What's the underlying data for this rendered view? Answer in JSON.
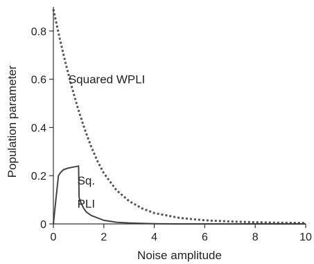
{
  "chart_data": {
    "type": "line",
    "title": "",
    "xlabel": "Noise amplitude",
    "ylabel": "Population parameter",
    "xlim": [
      0,
      10
    ],
    "ylim": [
      0,
      0.9
    ],
    "xticks": [
      0,
      2,
      4,
      6,
      8,
      10
    ],
    "xtick_labels": [
      "0",
      "2",
      "4",
      "6",
      "8",
      "10"
    ],
    "yticks": [
      0,
      0.2,
      0.4,
      0.6,
      0.8
    ],
    "ytick_labels": [
      "0",
      "0.2",
      "0.4",
      "0.6",
      "0.8"
    ],
    "grid": false,
    "series": [
      {
        "name": "Squared WPLI",
        "style": "dotted",
        "color": "#555555",
        "x": [
          0,
          0.25,
          0.5,
          0.75,
          1,
          1.25,
          1.5,
          1.75,
          2,
          2.5,
          3,
          3.5,
          4,
          5,
          6,
          7,
          8,
          9,
          10
        ],
        "y": [
          0.89,
          0.77,
          0.66,
          0.56,
          0.47,
          0.39,
          0.32,
          0.26,
          0.21,
          0.14,
          0.095,
          0.065,
          0.045,
          0.025,
          0.015,
          0.01,
          0.007,
          0.005,
          0.004
        ]
      },
      {
        "name": "Sq. PLI",
        "style": "solid",
        "color": "#444444",
        "x": [
          0,
          0.1,
          0.2,
          0.3,
          0.4,
          0.6,
          0.8,
          1.0,
          1.02,
          1.1,
          1.2,
          1.3,
          1.5,
          2,
          2.5,
          3,
          4,
          5,
          6,
          8,
          10
        ],
        "y": [
          0,
          0.1,
          0.2,
          0.215,
          0.225,
          0.232,
          0.236,
          0.24,
          0.11,
          0.085,
          0.065,
          0.05,
          0.035,
          0.015,
          0.007,
          0.004,
          0.001,
          0,
          0,
          0,
          0
        ]
      }
    ],
    "annotations": [
      {
        "text": "Squared WPLI",
        "x": 0.6,
        "y": 0.6
      },
      {
        "text": "Sq.",
        "x": 0.95,
        "y": 0.18
      },
      {
        "text": "PLI",
        "x": 0.95,
        "y": 0.085
      }
    ]
  }
}
